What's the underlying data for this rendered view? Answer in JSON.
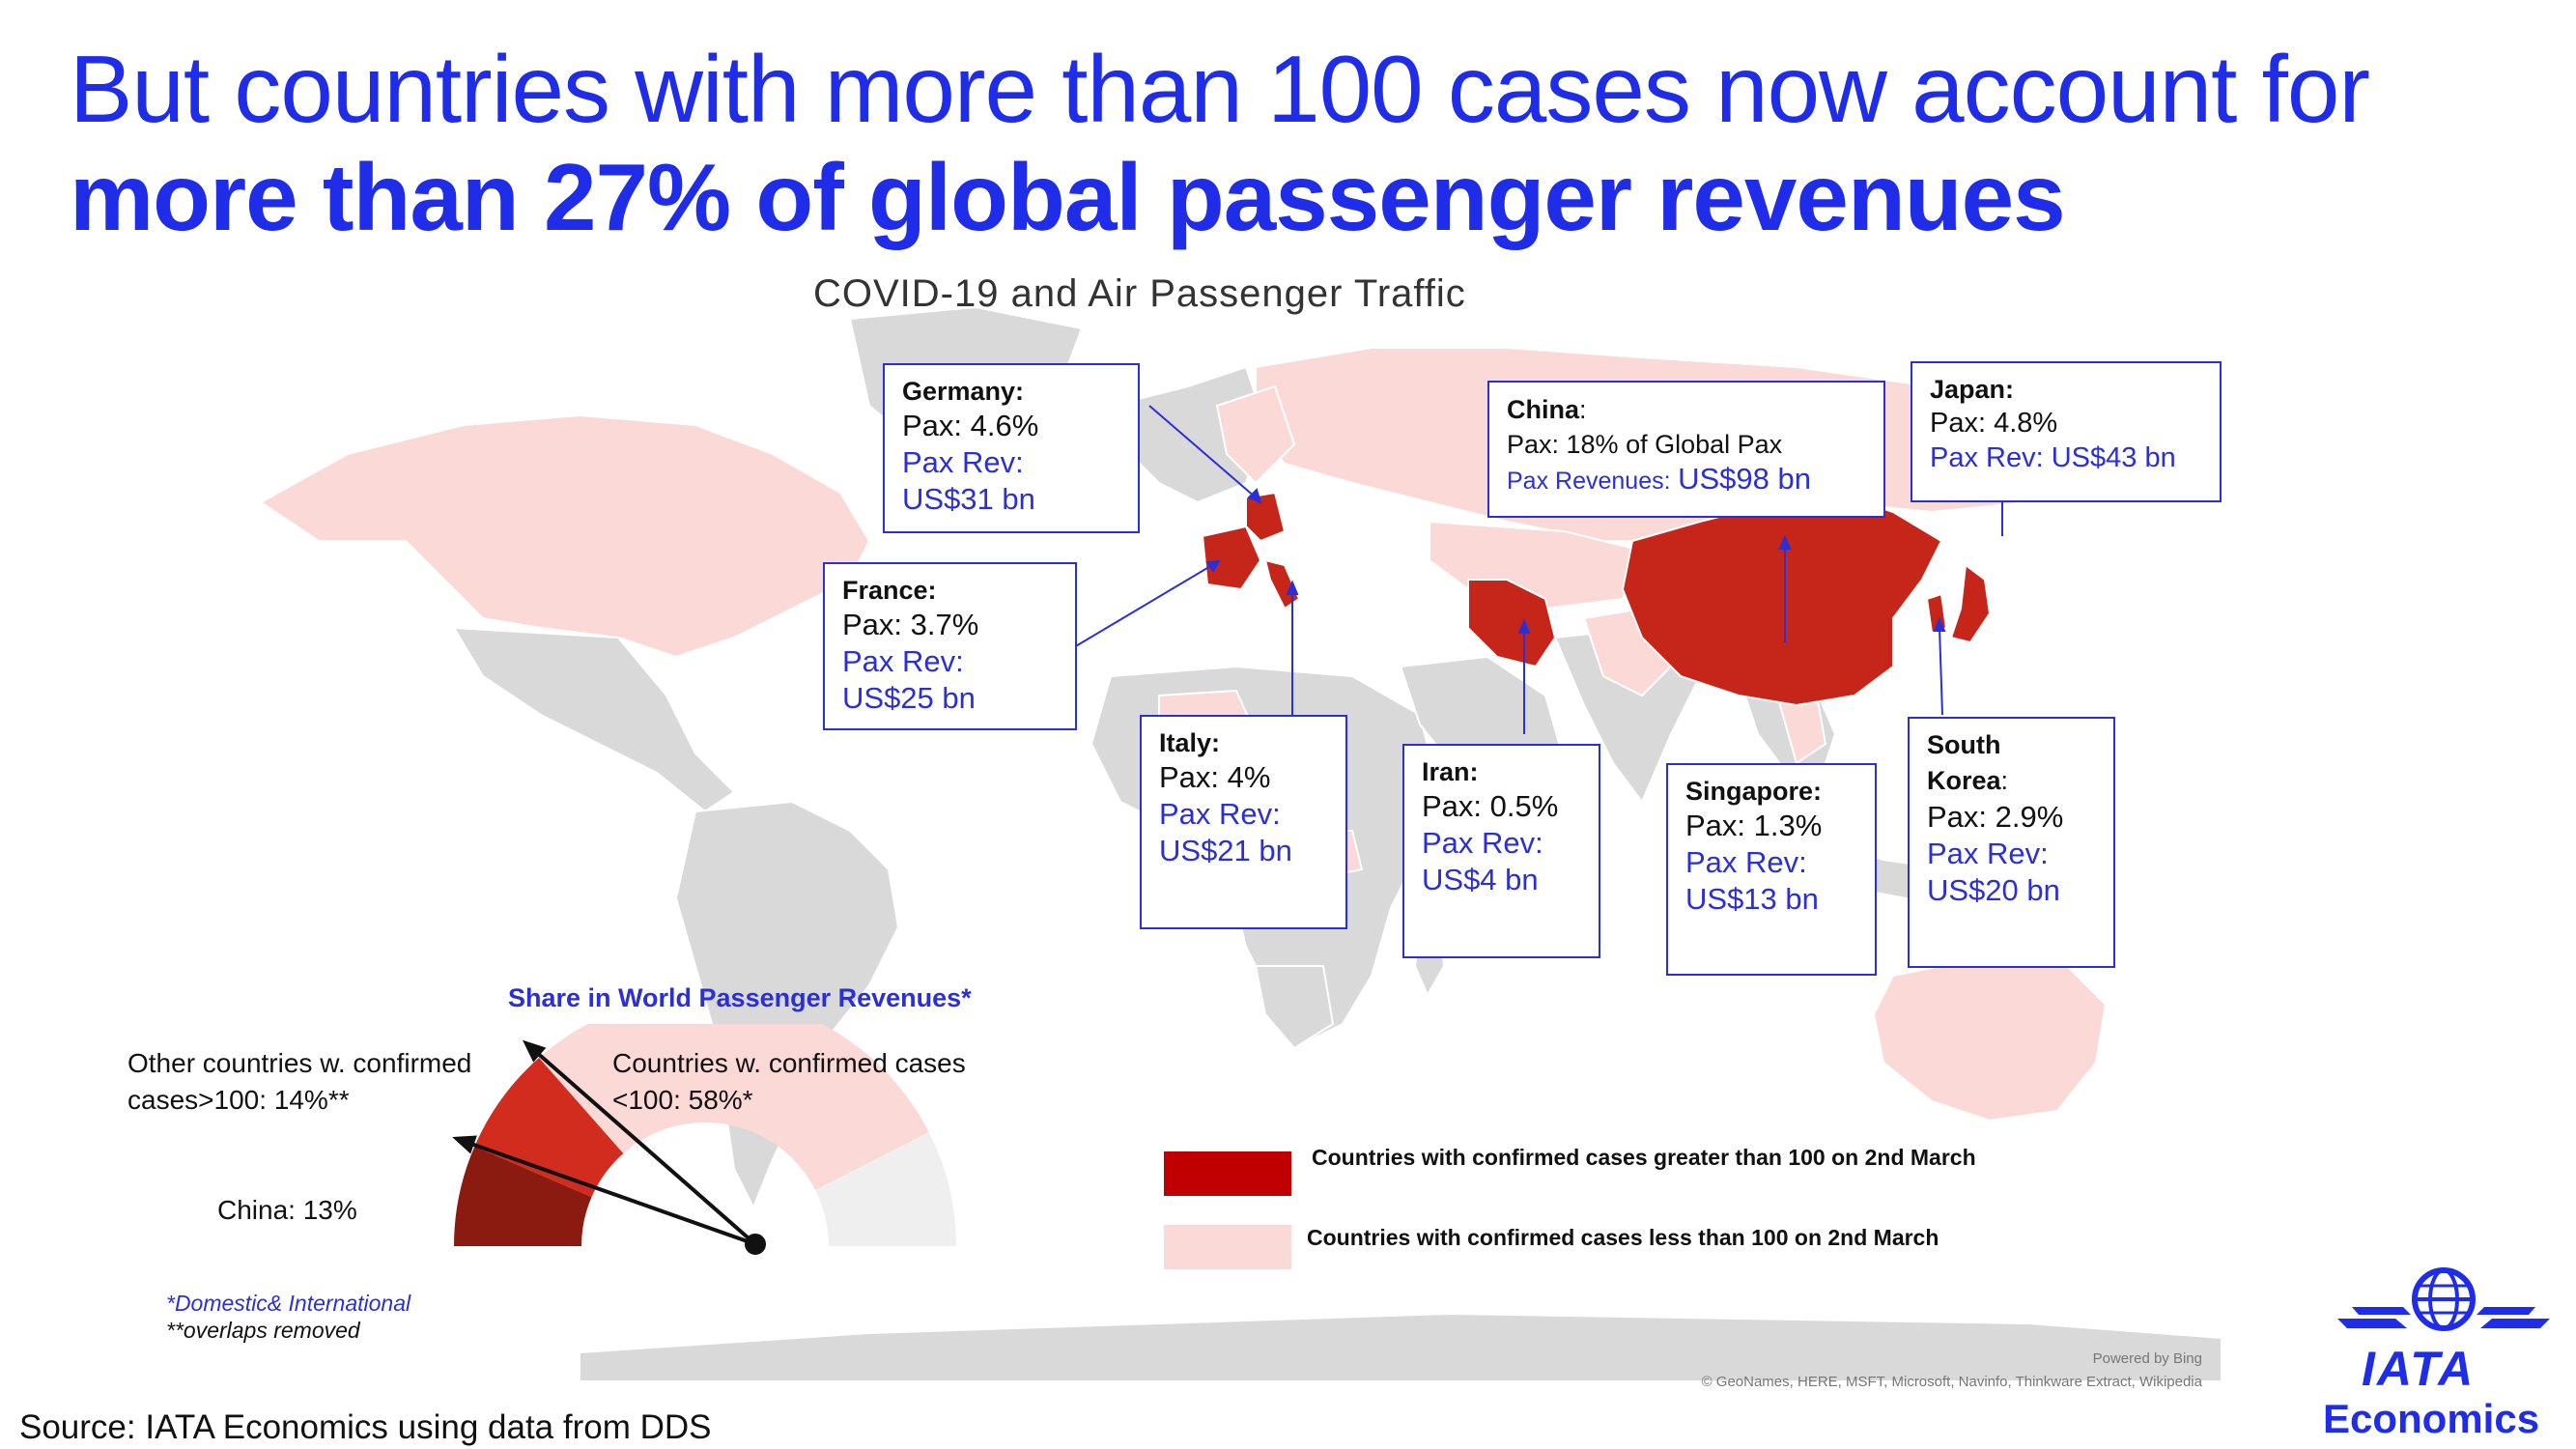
{
  "headline": {
    "line1": "But countries with more than 100 cases now account for",
    "line2": "more than 27% of global passenger revenues"
  },
  "map": {
    "title": "COVID-19 and Air Passenger Traffic",
    "credit_line1": "Powered by Bing",
    "credit_line2": "© GeoNames, HERE, MSFT, Microsoft, Navinfo, Thinkware Extract, Wikipedia"
  },
  "callouts": {
    "germany": {
      "name": "Germany:",
      "pax": "Pax: 4.6%",
      "rev_label": "Pax Rev:",
      "rev_value": "US$31 bn"
    },
    "france": {
      "name": "France:",
      "pax": "Pax: 3.7%",
      "rev_label": "Pax Rev:",
      "rev_value": "US$25 bn"
    },
    "italy": {
      "name": "Italy:",
      "pax": "Pax: 4%",
      "rev_label": "Pax Rev:",
      "rev_value": "US$21 bn"
    },
    "iran": {
      "name": "Iran:",
      "pax": "Pax: 0.5%",
      "rev_label": "Pax Rev:",
      "rev_value": "US$4 bn"
    },
    "singapore": {
      "name": "Singapore:",
      "pax": "Pax: 1.3%",
      "rev_label": "Pax Rev:",
      "rev_value": "US$13 bn"
    },
    "south_korea": {
      "name_line1": "South",
      "name_line2": "Korea",
      "suffix": ":",
      "pax": "Pax: 2.9%",
      "rev_label": "Pax Rev:",
      "rev_value": "US$20 bn"
    },
    "china": {
      "name": "China",
      "suffix": ":",
      "pax": "Pax: 18% of Global Pax",
      "rev_label": "Pax Revenues:",
      "rev_value": "US$98 bn"
    },
    "japan": {
      "name": "Japan:",
      "pax": "Pax: 4.8%",
      "rev": "Pax Rev: US$43 bn"
    }
  },
  "legend": {
    "high": "Countries with confirmed cases greater than 100 on 2nd March",
    "low": "Countries with confirmed cases less than 100 on 2nd March",
    "high_color": "#c00000",
    "low_color": "#fbd9d6"
  },
  "chart_data": {
    "type": "pie",
    "title": "Share in World Passenger Revenues*",
    "segments": [
      {
        "label": "China: 13%",
        "value": 13,
        "color": "#8b1a10"
      },
      {
        "label": "Other countries w. confirmed cases>100: 14%**",
        "value": 14,
        "color": "#d12c1d"
      },
      {
        "label": "Countries w. confirmed cases <100: 58%*",
        "value": 58,
        "color": "#fbd9d6"
      },
      {
        "label": "",
        "value": 15,
        "color": "#efefef"
      }
    ]
  },
  "gauge_labels": {
    "other_line1": "Other countries w. confirmed",
    "other_line2": "cases>100: 14%**",
    "low_line1": "Countries w. confirmed cases",
    "low_line2": "<100: 58%*",
    "china": "China:  13%"
  },
  "notes": {
    "note1": "*Domestic& International",
    "note2": "**overlaps removed"
  },
  "source": "Source: IATA Economics using data from DDS",
  "logo": {
    "word": "IATA",
    "sub": "Economics",
    "color": "#1f2de8"
  }
}
